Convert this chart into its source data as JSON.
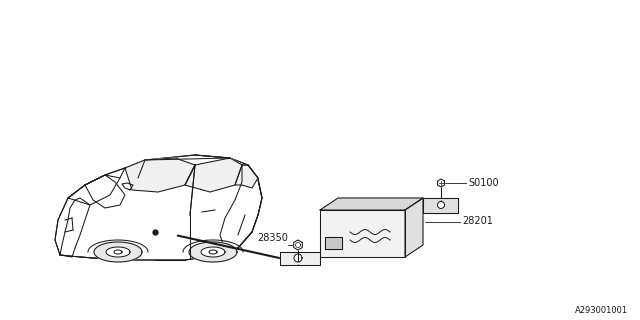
{
  "bg_color": "#ffffff",
  "line_color": "#1a1a1a",
  "diagram_number": "A293001001",
  "part_numbers": {
    "screw": "S0100",
    "unit": "28201",
    "bolt": "28350"
  },
  "figsize": [
    6.4,
    3.2
  ],
  "dpi": 100
}
